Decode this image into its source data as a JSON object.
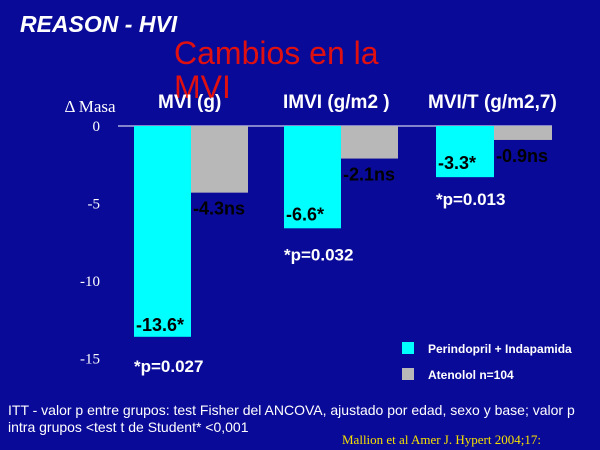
{
  "header": {
    "title": "REASON - HVI"
  },
  "chart_data": {
    "type": "bar",
    "title": "Cambios en la MVI",
    "ylabel": "Δ Masa",
    "ylim": [
      -15,
      0
    ],
    "yticks": [
      0,
      -5,
      -10,
      -15
    ],
    "yticklabels": [
      "0",
      "-5",
      "-10",
      "-15"
    ],
    "colors": {
      "Perindopril + Indapamida": "#00ffff",
      "Atenolol": "#b8b8b8"
    },
    "panels": [
      {
        "title": "MVI (g)",
        "categories": [
          "Perindopril + Indapamida",
          "Atenolol"
        ],
        "values": [
          -13.6,
          -4.3
        ],
        "labels": [
          "-13.6*",
          "-4.3ns"
        ],
        "pvalue": "*p=0.027"
      },
      {
        "title": "IMVI (g/m2 )",
        "categories": [
          "Perindopril + Indapamida",
          "Atenolol"
        ],
        "values": [
          -6.6,
          -2.1
        ],
        "labels": [
          "-6.6*",
          "-2.1ns"
        ],
        "pvalue": "*p=0.032"
      },
      {
        "title": "MVI/T (g/m2,7)",
        "categories": [
          "Perindopril + Indapamida",
          "Atenolol"
        ],
        "values": [
          -3.3,
          -0.9
        ],
        "labels": [
          "-3.3*",
          "-0.9ns"
        ],
        "pvalue": "*p=0.013"
      }
    ],
    "legend": [
      {
        "name": "Perindopril + Indapamida",
        "color": "#00ffff"
      },
      {
        "name": "Atenolol",
        "suffix": "n=104",
        "color": "#b8b8b8"
      }
    ]
  },
  "footnote": "ITT - valor p entre grupos: test Fisher del ANCOVA, ajustado por edad, sexo y base; valor p intra grupos <test t de Student* <0,001",
  "citation": "Mallion et al Amer J. Hypert 2004;17:"
}
